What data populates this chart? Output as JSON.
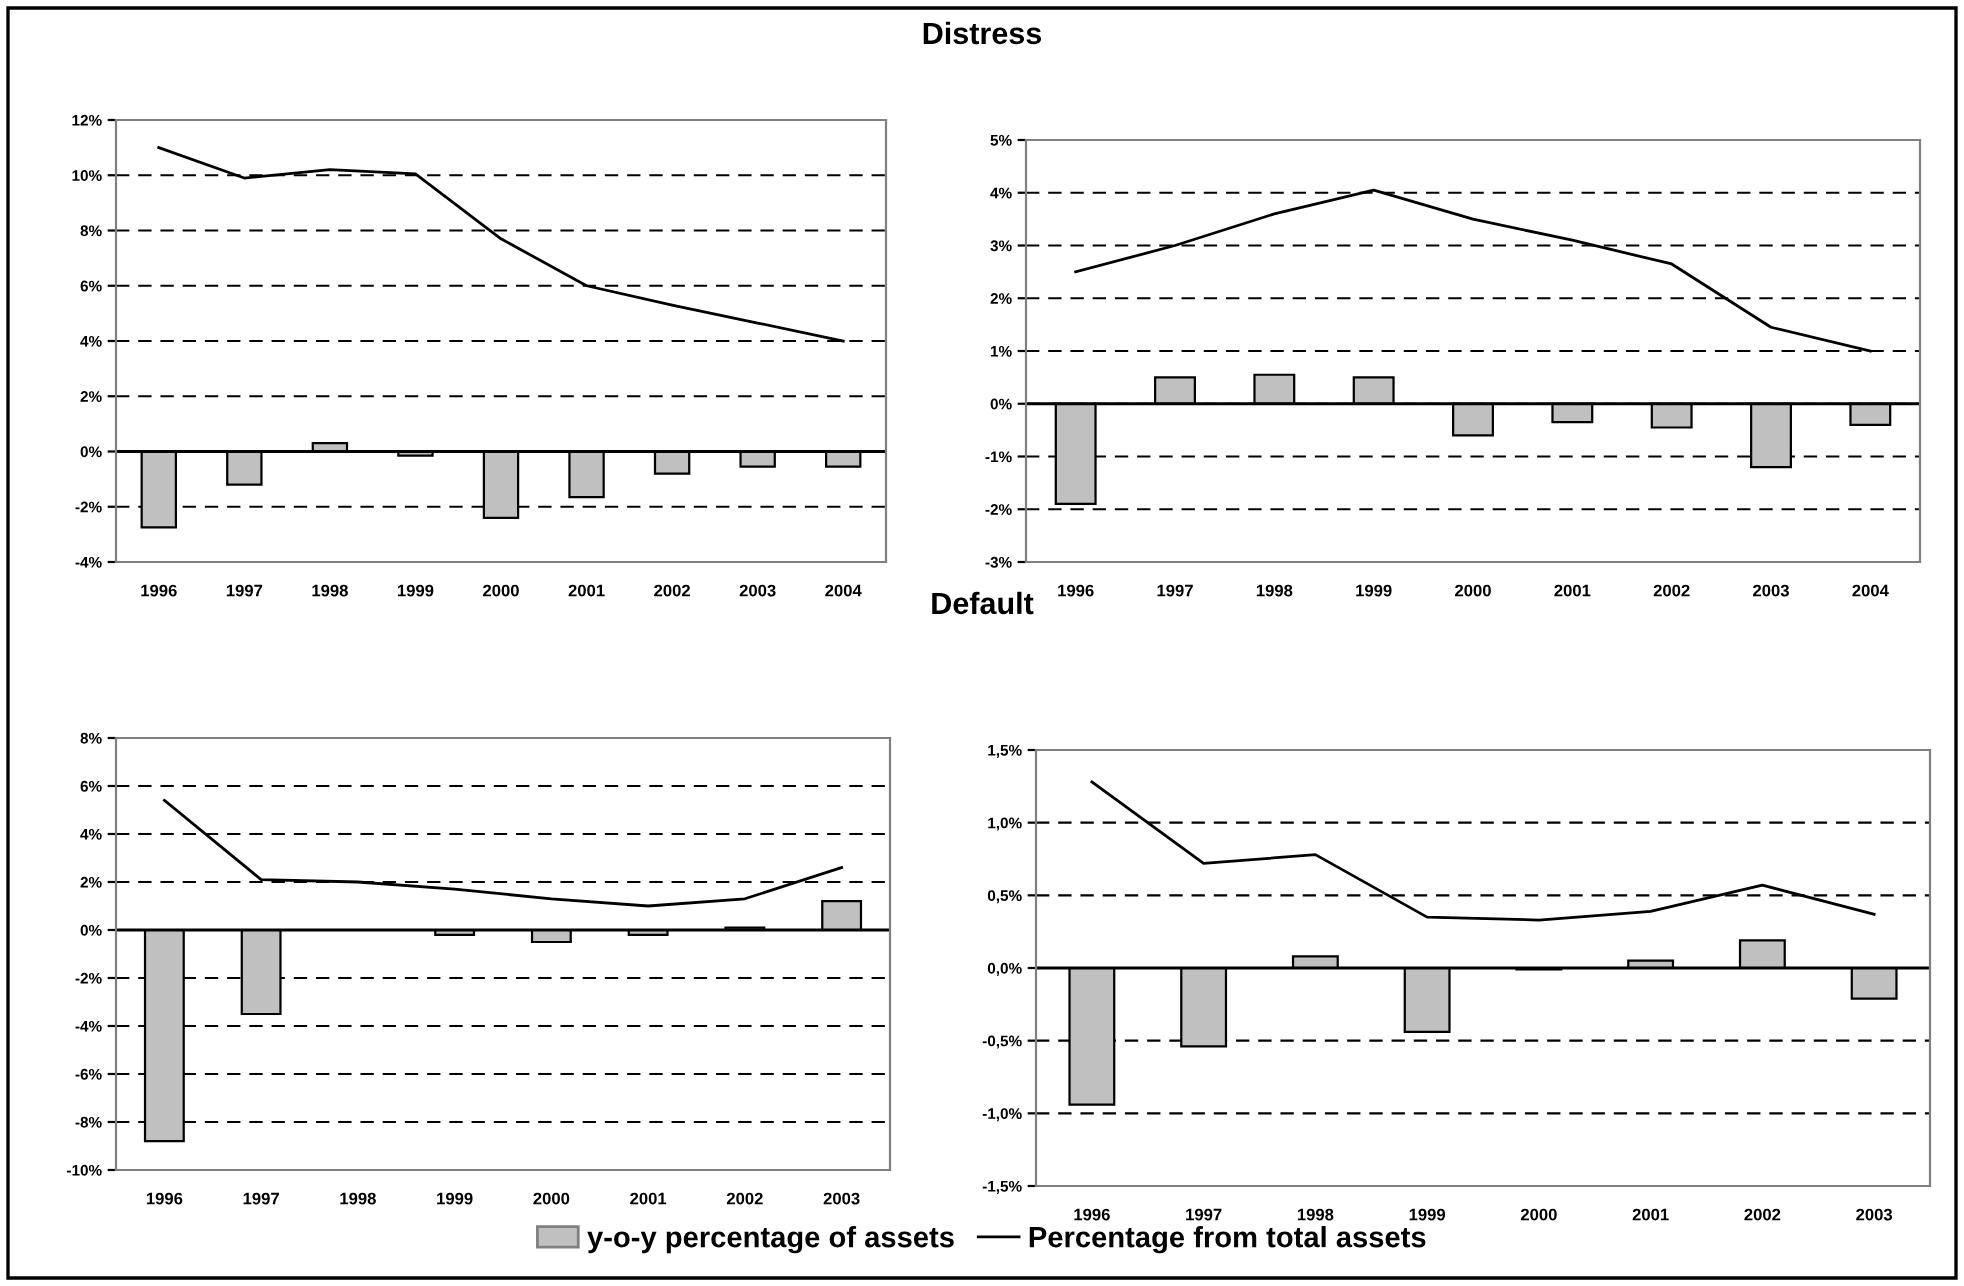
{
  "chart_data": [
    {
      "type": "bar",
      "annotations": [
        "Distress"
      ],
      "categories": [
        "1996",
        "1997",
        "1998",
        "1999",
        "2000",
        "2001",
        "2002",
        "2003",
        "2004"
      ],
      "ylim": [
        -4,
        12
      ],
      "yticks": [
        {
          "value": -4,
          "label": "-4%"
        },
        {
          "value": -2,
          "label": "-2%"
        },
        {
          "value": 0,
          "label": "0%"
        },
        {
          "value": 2,
          "label": "2%"
        },
        {
          "value": 4,
          "label": "4%"
        },
        {
          "value": 6,
          "label": "6%"
        },
        {
          "value": 8,
          "label": "8%"
        },
        {
          "value": 10,
          "label": "10%"
        },
        {
          "value": 12,
          "label": "12%"
        }
      ],
      "grid": "y",
      "legend": "bottom",
      "marker": "none",
      "series": [
        {
          "name": "y-o-y percentage of assets",
          "color": "#c0c0c0",
          "values": [
            -2.75,
            -1.2,
            0.3,
            -0.15,
            -2.4,
            -1.65,
            -0.8,
            -0.55,
            -0.55
          ]
        },
        {
          "name": "Percentage from total assets",
          "type": "line",
          "color": "#000000",
          "values": [
            11.0,
            9.9,
            10.2,
            10.05,
            7.7,
            6.0,
            5.3,
            4.65,
            4.0
          ]
        }
      ]
    },
    {
      "type": "bar",
      "categories": [
        "1996",
        "1997",
        "1998",
        "1999",
        "2000",
        "2001",
        "2002",
        "2003",
        "2004"
      ],
      "ylim": [
        -3,
        5
      ],
      "yticks": [
        {
          "value": -3,
          "label": "-3%"
        },
        {
          "value": -2,
          "label": "-2%"
        },
        {
          "value": -1,
          "label": "-1%"
        },
        {
          "value": 0,
          "label": "0%"
        },
        {
          "value": 1,
          "label": "1%"
        },
        {
          "value": 2,
          "label": "2%"
        },
        {
          "value": 3,
          "label": "3%"
        },
        {
          "value": 4,
          "label": "4%"
        },
        {
          "value": 5,
          "label": "5%"
        }
      ],
      "grid": "y",
      "marker": "none",
      "series": [
        {
          "color": "#c0c0c0",
          "values": [
            -1.9,
            0.5,
            0.55,
            0.5,
            -0.6,
            -0.35,
            -0.45,
            -1.2,
            -0.4
          ]
        },
        {
          "type": "line",
          "color": "#000000",
          "values": [
            2.5,
            3.0,
            3.6,
            4.05,
            3.5,
            3.1,
            2.65,
            1.45,
            1.0
          ]
        }
      ]
    },
    {
      "type": "bar",
      "annotations": [
        "Default"
      ],
      "categories": [
        "1996",
        "1997",
        "1998",
        "1999",
        "2000",
        "2001",
        "2002",
        "2003"
      ],
      "ylim": [
        -10,
        8
      ],
      "yticks": [
        {
          "value": -10,
          "label": "-10%"
        },
        {
          "value": -8,
          "label": "-8%"
        },
        {
          "value": -6,
          "label": "-6%"
        },
        {
          "value": -4,
          "label": "-4%"
        },
        {
          "value": -2,
          "label": "-2%"
        },
        {
          "value": 0,
          "label": "0%"
        },
        {
          "value": 2,
          "label": "2%"
        },
        {
          "value": 4,
          "label": "4%"
        },
        {
          "value": 6,
          "label": "6%"
        },
        {
          "value": 8,
          "label": "8%"
        }
      ],
      "grid": "y",
      "marker": "none",
      "series": [
        {
          "color": "#c0c0c0",
          "values": [
            -8.8,
            -3.5,
            null,
            -0.2,
            -0.5,
            -0.2,
            0.1,
            1.2
          ]
        },
        {
          "type": "line",
          "color": "#000000",
          "values": [
            5.4,
            2.1,
            2.0,
            1.7,
            1.3,
            1.0,
            1.3,
            2.6
          ]
        }
      ]
    },
    {
      "type": "bar",
      "categories": [
        "1996",
        "1997",
        "1998",
        "1999",
        "2000",
        "2001",
        "2002",
        "2003"
      ],
      "ylim": [
        -1.5,
        1.5
      ],
      "yticks": [
        {
          "value": -1.5,
          "label": "-1,5%"
        },
        {
          "value": -1.0,
          "label": "-1,0%"
        },
        {
          "value": -0.5,
          "label": "-0,5%"
        },
        {
          "value": 0.0,
          "label": "0,0%"
        },
        {
          "value": 0.5,
          "label": "0,5%"
        },
        {
          "value": 1.0,
          "label": "1,0%"
        },
        {
          "value": 1.5,
          "label": "1,5%"
        }
      ],
      "grid": "y",
      "marker": "none",
      "series": [
        {
          "color": "#c0c0c0",
          "values": [
            -0.94,
            -0.54,
            0.08,
            -0.44,
            -0.01,
            0.05,
            0.19,
            -0.21
          ]
        },
        {
          "type": "line",
          "color": "#000000",
          "values": [
            1.28,
            0.72,
            0.78,
            0.35,
            0.33,
            0.39,
            0.57,
            0.37
          ]
        }
      ]
    }
  ]
}
